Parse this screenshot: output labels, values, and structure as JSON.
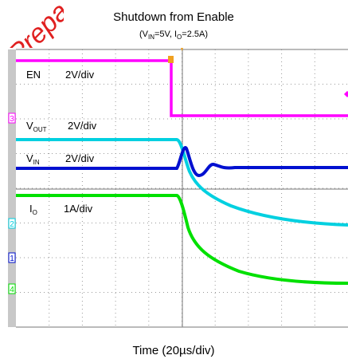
{
  "title": "Shutdown from Enable",
  "subtitle": [
    {
      "text": "(V"
    },
    {
      "text": "IN",
      "sub": true
    },
    {
      "text": "=5V,  I"
    },
    {
      "text": "O",
      "sub": true
    },
    {
      "text": "=2.5A)"
    }
  ],
  "watermark": "Prepa",
  "channels": [
    {
      "name": [
        {
          "text": "EN"
        }
      ],
      "scale": "2V/div"
    },
    {
      "name": [
        {
          "text": "V"
        },
        {
          "text": "OUT",
          "sub": true
        }
      ],
      "scale": "2V/div"
    },
    {
      "name": [
        {
          "text": "V"
        },
        {
          "text": "IN",
          "sub": true
        }
      ],
      "scale": "2V/div"
    },
    {
      "name": [
        {
          "text": "I"
        },
        {
          "text": "O",
          "sub": true
        }
      ],
      "scale": "1A/div"
    }
  ],
  "channel_markers": [
    "3",
    "2",
    "1",
    "4"
  ],
  "x_label": "Time (20µs/div)"
}
